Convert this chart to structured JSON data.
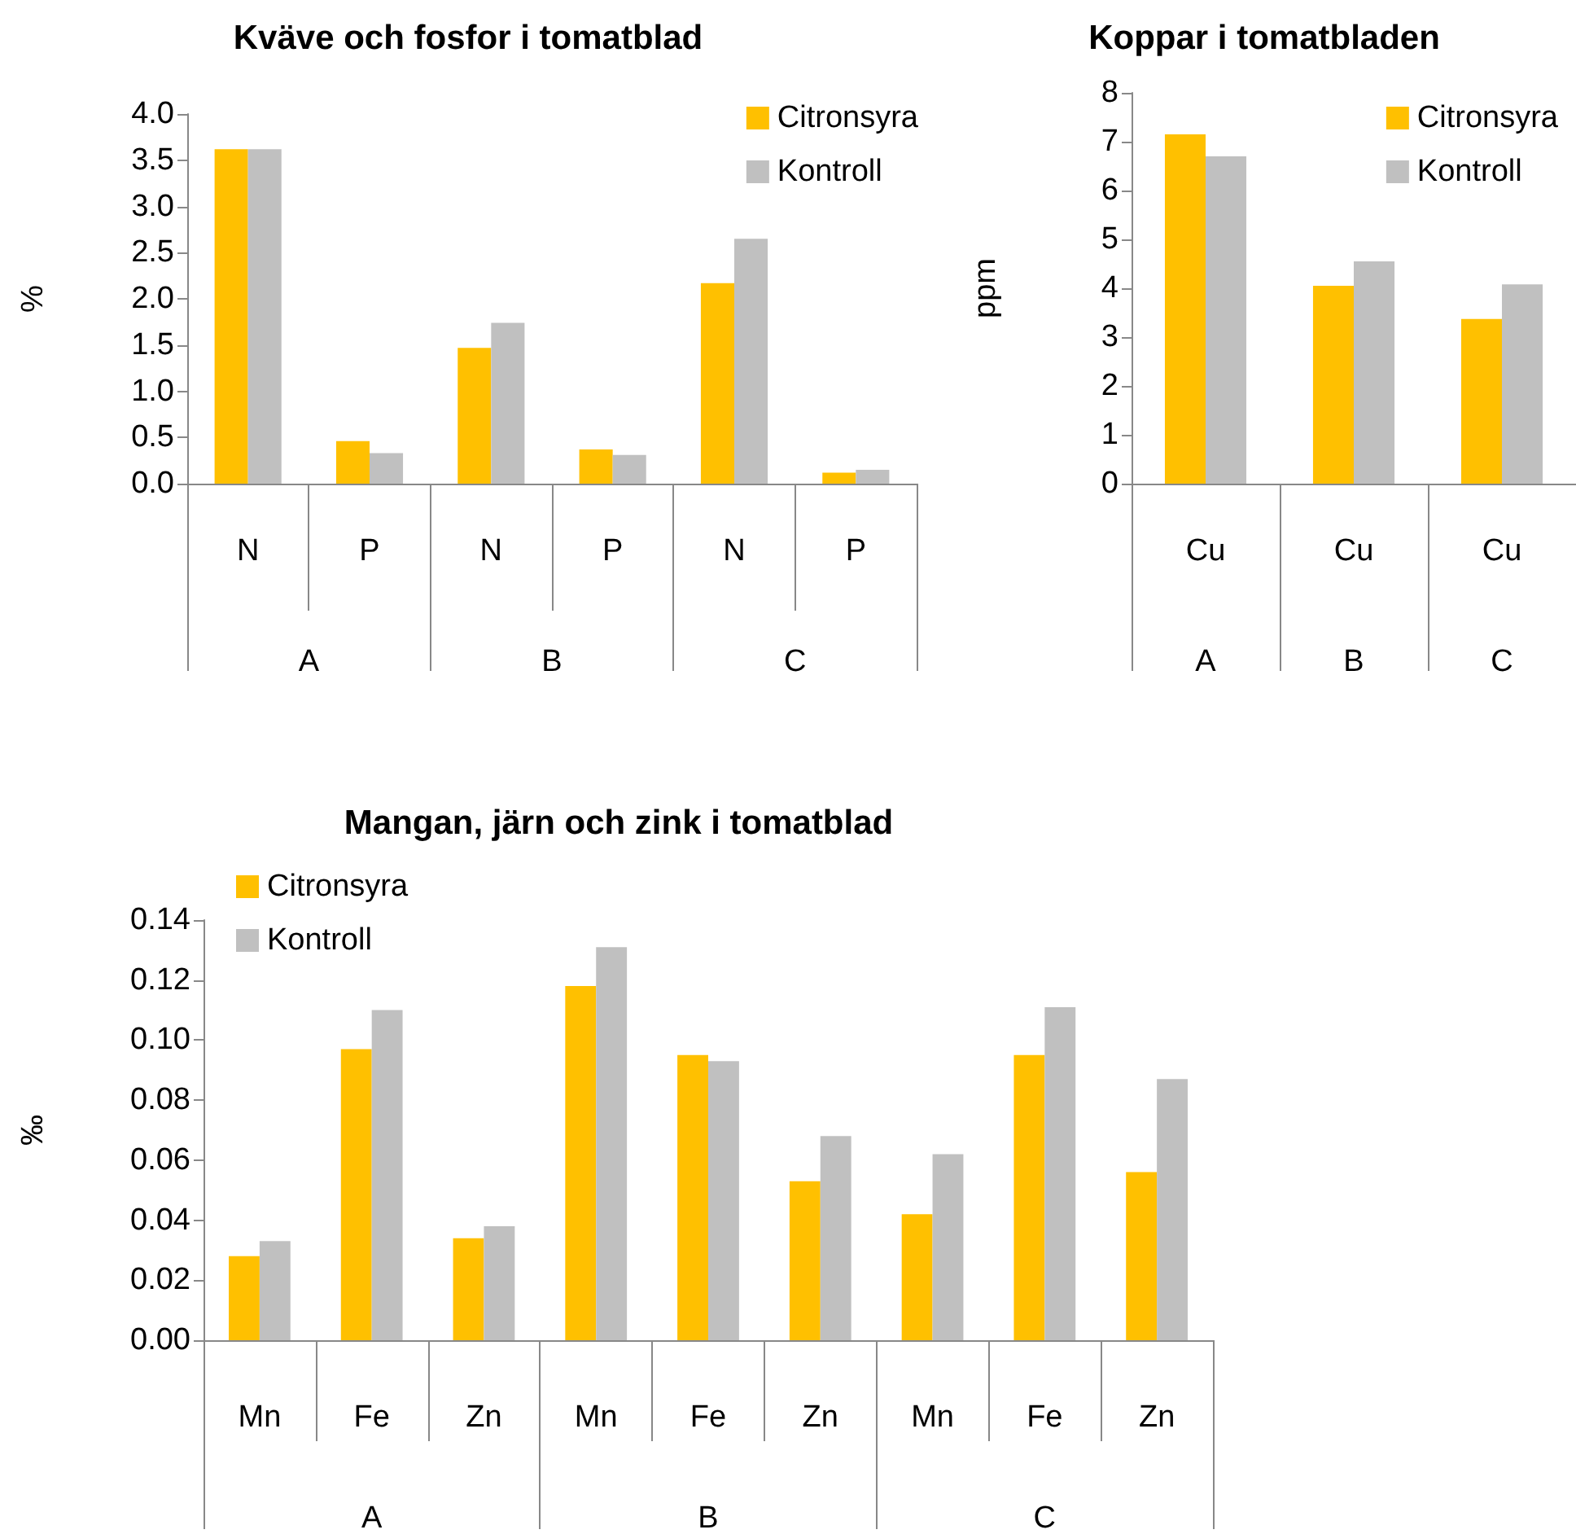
{
  "chart_data": [
    {
      "type": "bar",
      "title": "Kväve och fosfor i tomatblad",
      "ylabel": "%",
      "categories": [
        "N",
        "P",
        "N",
        "P",
        "N",
        "P"
      ],
      "annotations": [
        "A",
        "B",
        "C"
      ],
      "series": [
        {
          "name": "Citronsyra",
          "color": "#ffc000",
          "values": [
            3.62,
            0.46,
            1.47,
            0.37,
            2.17,
            0.12
          ]
        },
        {
          "name": "Kontroll",
          "color": "#c0c0c0",
          "values": [
            3.62,
            0.33,
            1.74,
            0.31,
            2.65,
            0.15
          ]
        }
      ],
      "ylim": [
        0,
        4
      ],
      "yticks": [
        {
          "value": 0,
          "label": "0.0"
        },
        {
          "value": 0.5,
          "label": "0.5"
        },
        {
          "value": 1,
          "label": "1.0"
        },
        {
          "value": 1.5,
          "label": "1.5"
        },
        {
          "value": 2,
          "label": "2.0"
        },
        {
          "value": 2.5,
          "label": "2.5"
        },
        {
          "value": 3,
          "label": "3.0"
        },
        {
          "value": 3.5,
          "label": "3.5"
        },
        {
          "value": 4,
          "label": "4.0"
        }
      ],
      "grid": false,
      "legend": "top right"
    },
    {
      "type": "bar",
      "title": "Koppar i tomatbladen",
      "ylabel": "ppm",
      "categories": [
        "Cu",
        "Cu",
        "Cu"
      ],
      "annotations": [
        "A",
        "B",
        "C"
      ],
      "series": [
        {
          "name": "Citronsyra",
          "color": "#ffc000",
          "values": [
            7.15,
            4.05,
            3.37
          ]
        },
        {
          "name": "Kontroll",
          "color": "#c0c0c0",
          "values": [
            6.7,
            4.55,
            4.08
          ]
        }
      ],
      "ylim": [
        0,
        8
      ],
      "yticks": [
        0,
        1,
        2,
        3,
        4,
        5,
        6,
        7,
        8
      ],
      "grid": false,
      "legend": "top right"
    },
    {
      "type": "bar",
      "title": "Mangan, järn och zink i tomatblad",
      "ylabel": "‰",
      "categories": [
        "Mn",
        "Fe",
        "Zn",
        "Mn",
        "Fe",
        "Zn",
        "Mn",
        "Fe",
        "Zn"
      ],
      "annotations": [
        "A",
        "B",
        "C"
      ],
      "series": [
        {
          "name": "Citronsyra",
          "color": "#ffc000",
          "values": [
            0.028,
            0.097,
            0.034,
            0.118,
            0.095,
            0.053,
            0.042,
            0.095,
            0.056
          ]
        },
        {
          "name": "Kontroll",
          "color": "#c0c0c0",
          "values": [
            0.033,
            0.11,
            0.038,
            0.131,
            0.093,
            0.068,
            0.062,
            0.111,
            0.087
          ]
        }
      ],
      "ylim": [
        0,
        0.14
      ],
      "yticks": [
        {
          "value": 0,
          "label": "0.00"
        },
        {
          "value": 0.02,
          "label": "0.02"
        },
        {
          "value": 0.04,
          "label": "0.04"
        },
        {
          "value": 0.06,
          "label": "0.06"
        },
        {
          "value": 0.08,
          "label": "0.08"
        },
        {
          "value": 0.1,
          "label": "0.10"
        },
        {
          "value": 0.12,
          "label": "0.12"
        },
        {
          "value": 0.14,
          "label": "0.14"
        }
      ],
      "grid": false,
      "legend": "top left"
    }
  ]
}
